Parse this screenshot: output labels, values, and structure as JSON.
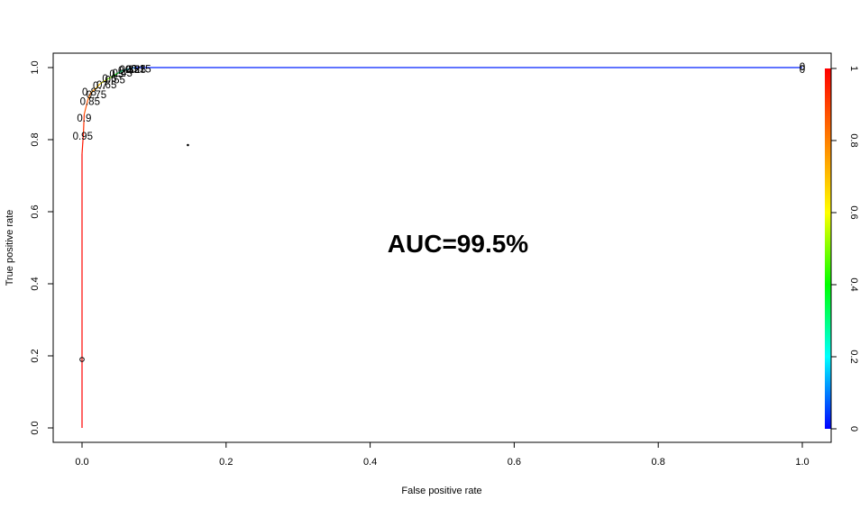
{
  "chart_data": {
    "type": "line",
    "xlabel": "False positive rate",
    "ylabel": "True positive rate",
    "xlim": [
      0,
      1
    ],
    "ylim": [
      0,
      1
    ],
    "x_ticks": [
      "0.0",
      "0.2",
      "0.4",
      "0.6",
      "0.8",
      "1.0"
    ],
    "y_ticks": [
      "0.0",
      "0.2",
      "0.4",
      "0.6",
      "0.8",
      "1.0"
    ],
    "colorbar": {
      "ticks": [
        "0",
        "0.2",
        "0.4",
        "0.6",
        "0.8",
        "1"
      ],
      "range": [
        0,
        1
      ],
      "colors": [
        "#0000ff",
        "#00ffff",
        "#00ff00",
        "#ffff00",
        "#ff8000",
        "#ff0000"
      ]
    },
    "annotation": "AUC=99.5%",
    "grid": false,
    "series": [
      {
        "points": [
          {
            "fpr": 0.0,
            "tpr": 0.0,
            "cutoff": 1.0
          },
          {
            "fpr": 0.0,
            "tpr": 0.19,
            "cutoff": 1.0
          },
          {
            "fpr": 0.0,
            "tpr": 0.76,
            "cutoff": 0.98
          },
          {
            "fpr": 0.002,
            "tpr": 0.82,
            "cutoff": 0.95
          },
          {
            "fpr": 0.003,
            "tpr": 0.87,
            "cutoff": 0.9
          },
          {
            "fpr": 0.008,
            "tpr": 0.91,
            "cutoff": 0.85
          },
          {
            "fpr": 0.012,
            "tpr": 0.93,
            "cutoff": 0.8
          },
          {
            "fpr": 0.018,
            "tpr": 0.94,
            "cutoff": 0.75
          },
          {
            "fpr": 0.025,
            "tpr": 0.955,
            "cutoff": 0.65
          },
          {
            "fpr": 0.033,
            "tpr": 0.965,
            "cutoff": 0.55
          },
          {
            "fpr": 0.042,
            "tpr": 0.975,
            "cutoff": 0.45
          },
          {
            "fpr": 0.05,
            "tpr": 0.985,
            "cutoff": 0.35
          },
          {
            "fpr": 0.058,
            "tpr": 0.993,
            "cutoff": 0.25
          },
          {
            "fpr": 0.066,
            "tpr": 0.997,
            "cutoff": 0.15
          },
          {
            "fpr": 0.075,
            "tpr": 1.0,
            "cutoff": 0.05
          },
          {
            "fpr": 1.0,
            "tpr": 1.0,
            "cutoff": 0.0
          }
        ]
      }
    ],
    "cutoff_labels": [
      {
        "text": "0.95",
        "fpr": 0.001,
        "tpr": 0.81
      },
      {
        "text": "0.9",
        "fpr": 0.003,
        "tpr": 0.86
      },
      {
        "text": "0.85",
        "fpr": 0.011,
        "tpr": 0.906
      },
      {
        "text": "0.8",
        "fpr": 0.01,
        "tpr": 0.933
      },
      {
        "text": "0.75",
        "fpr": 0.02,
        "tpr": 0.925
      },
      {
        "text": "0.7",
        "fpr": 0.025,
        "tpr": 0.95
      },
      {
        "text": "0.65",
        "fpr": 0.034,
        "tpr": 0.953
      },
      {
        "text": "0.6",
        "fpr": 0.038,
        "tpr": 0.97
      },
      {
        "text": "0.55",
        "fpr": 0.046,
        "tpr": 0.966
      },
      {
        "text": "0.5",
        "fpr": 0.048,
        "tpr": 0.983
      },
      {
        "text": "0.45",
        "fpr": 0.056,
        "tpr": 0.985
      },
      {
        "text": "0.4",
        "fpr": 0.06,
        "tpr": 0.993
      },
      {
        "text": "0.35",
        "fpr": 0.066,
        "tpr": 0.995
      },
      {
        "text": "0.3",
        "fpr": 0.07,
        "tpr": 0.995
      },
      {
        "text": "0.25",
        "fpr": 0.075,
        "tpr": 0.995
      },
      {
        "text": "0.2",
        "fpr": 0.078,
        "tpr": 0.996
      },
      {
        "text": "0.15",
        "fpr": 0.082,
        "tpr": 0.996
      },
      {
        "text": "0",
        "fpr": 1.0,
        "tpr": 0.995
      },
      {
        "text": "0",
        "fpr": 1.0,
        "tpr": 1.003
      }
    ],
    "markers": [
      {
        "fpr": 0.0,
        "tpr": 0.19
      },
      {
        "fpr": 1.0,
        "tpr": 1.0
      },
      {
        "fpr": 0.147,
        "tpr": 0.785
      }
    ]
  }
}
